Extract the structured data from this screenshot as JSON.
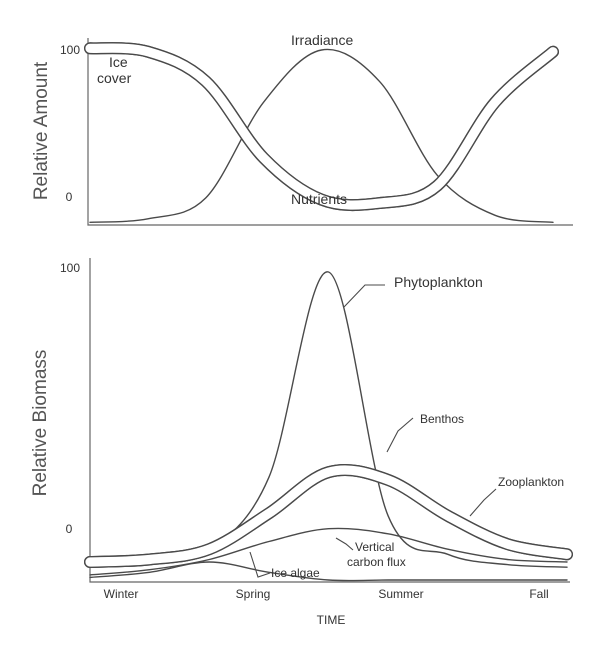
{
  "chart_data": [
    {
      "type": "line",
      "ylabel": "Relative Amount",
      "yticks": [
        "0",
        "100"
      ],
      "ylim": [
        0,
        100
      ],
      "x": [
        0,
        0.5,
        1,
        1.5,
        2,
        2.5,
        3,
        3.5,
        4
      ],
      "series": [
        {
          "name": "Ice cover",
          "values": [
            101,
            99,
            82,
            38,
            14,
            12,
            22,
            70,
            99
          ],
          "outline": true
        },
        {
          "name": "Irradiance",
          "values": [
            1,
            3,
            15,
            70,
            100,
            82,
            28,
            5,
            1
          ]
        },
        {
          "name": "Nutrients",
          "values": [
            101,
            99,
            82,
            38,
            14,
            12,
            22,
            70,
            99
          ],
          "outline": true
        }
      ],
      "labels": {
        "Ice cover": [
          "Ice",
          "cover"
        ],
        "Irradiance": "Irradiance",
        "Nutrients": "Nutrients"
      }
    },
    {
      "type": "line",
      "ylabel": "Relative Biomass",
      "xlabel": "TIME",
      "yticks": [
        "0",
        "100"
      ],
      "ylim": [
        -20,
        100
      ],
      "categories": [
        "Winter",
        "Spring",
        "Summer",
        "Fall"
      ],
      "x": [
        0,
        0.5,
        1,
        1.5,
        2,
        2.5,
        3,
        3.5,
        4
      ],
      "series": [
        {
          "name": "Phytoplankton",
          "values": [
            -13,
            -12,
            -8,
            20,
            100,
            5,
            -10,
            -14,
            -15
          ]
        },
        {
          "name": "Benthos",
          "values": [
            -13,
            -12,
            -8,
            6,
            22,
            19,
            5,
            -6,
            -10
          ],
          "outline": true
        },
        {
          "name": "Zooplankton",
          "values": [
            -13,
            -12,
            -8,
            6,
            22,
            19,
            5,
            -6,
            -10
          ],
          "outline": true
        },
        {
          "name": "Vertical carbon flux",
          "values": [
            -18,
            -16,
            -12,
            -5,
            0,
            -2,
            -8,
            -12,
            -13
          ]
        },
        {
          "name": "Ice algae",
          "values": [
            -19,
            -17,
            -13,
            -17,
            -20,
            -20,
            -20,
            -20,
            -20
          ]
        }
      ],
      "labels": {
        "Phytoplankton": "Phytoplankton",
        "Benthos": "Benthos",
        "Zooplankton": "Zooplankton",
        "Vertical carbon flux": [
          "Vertical",
          "carbon flux"
        ],
        "Ice algae": "Ice algae"
      }
    }
  ]
}
